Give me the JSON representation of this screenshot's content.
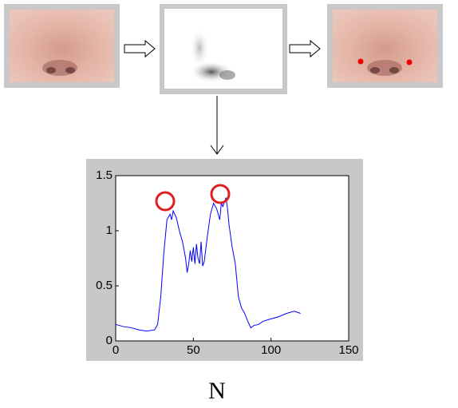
{
  "chart_data": {
    "type": "line",
    "x": [
      0,
      5,
      10,
      15,
      20,
      25,
      27,
      29,
      31,
      33,
      35,
      36,
      37,
      39,
      41,
      43,
      45,
      46,
      47,
      48,
      49,
      50,
      51,
      52,
      53,
      54,
      55,
      56,
      57,
      59,
      61,
      63,
      65,
      67,
      68,
      69,
      71,
      72,
      73,
      75,
      77,
      79,
      81,
      83,
      85,
      87,
      89,
      92,
      95,
      100,
      105,
      110,
      115,
      119
    ],
    "values": [
      0.15,
      0.13,
      0.12,
      0.1,
      0.09,
      0.1,
      0.15,
      0.4,
      0.8,
      1.1,
      1.15,
      1.1,
      1.18,
      1.12,
      1.0,
      0.9,
      0.75,
      0.62,
      0.7,
      0.82,
      0.72,
      0.85,
      0.7,
      0.88,
      0.75,
      0.7,
      0.9,
      0.68,
      0.72,
      0.95,
      1.15,
      1.25,
      1.2,
      1.1,
      1.25,
      1.22,
      1.3,
      1.2,
      1.05,
      0.85,
      0.7,
      0.4,
      0.3,
      0.25,
      0.18,
      0.12,
      0.14,
      0.15,
      0.18,
      0.2,
      0.22,
      0.25,
      0.27,
      0.25
    ],
    "color": "#0000ff",
    "xlim": [
      0,
      150
    ],
    "xticks": [
      0,
      50,
      100,
      150
    ],
    "ylim": [
      0,
      1.5
    ],
    "yticks": [
      0,
      0.5,
      1,
      1.5
    ]
  },
  "label": "N"
}
